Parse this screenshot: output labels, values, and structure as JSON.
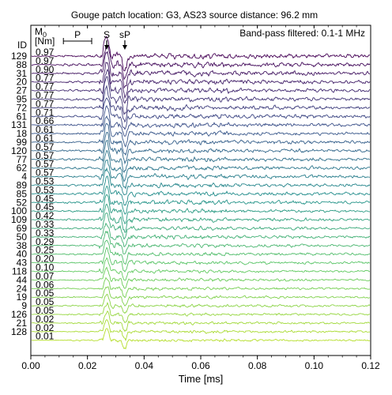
{
  "chart_data": {
    "type": "line",
    "title": "Gouge patch location: G3, AS23 source distance: 96.2 mm",
    "annotation": "Band-pass filtered: 0.1-1 MHz",
    "xlabel": "Time [ms]",
    "ylabel": "",
    "xlim": [
      0.0,
      0.12
    ],
    "xticks": [
      "0.00",
      "0.02",
      "0.04",
      "0.06",
      "0.08",
      "0.10",
      "0.12"
    ],
    "grid": false,
    "column_headers": {
      "id": "ID",
      "m0_symbol": "M",
      "m0_subscript": "0",
      "m0_unit": "[Nm]"
    },
    "phase_markers": [
      {
        "label": "P",
        "t_start": 0.0115,
        "t_end": 0.0215
      },
      {
        "label": "S",
        "t": 0.0268
      },
      {
        "label": "sP",
        "t": 0.0332
      }
    ],
    "colormap": [
      "#440154",
      "#3b528b",
      "#21918c",
      "#5ec962",
      "#b5de2b"
    ],
    "traces": [
      {
        "id": "129",
        "m0": "0.97"
      },
      {
        "id": "88",
        "m0": "0.97"
      },
      {
        "id": "31",
        "m0": "0.90"
      },
      {
        "id": "20",
        "m0": "0.77"
      },
      {
        "id": "27",
        "m0": "0.77"
      },
      {
        "id": "95",
        "m0": "0.77"
      },
      {
        "id": "72",
        "m0": "0.77"
      },
      {
        "id": "61",
        "m0": "0.71"
      },
      {
        "id": "131",
        "m0": "0.66"
      },
      {
        "id": "18",
        "m0": "0.61"
      },
      {
        "id": "99",
        "m0": "0.61"
      },
      {
        "id": "120",
        "m0": "0.57"
      },
      {
        "id": "77",
        "m0": "0.57"
      },
      {
        "id": "62",
        "m0": "0.57"
      },
      {
        "id": "4",
        "m0": "0.57"
      },
      {
        "id": "89",
        "m0": "0.53"
      },
      {
        "id": "85",
        "m0": "0.53"
      },
      {
        "id": "52",
        "m0": "0.45"
      },
      {
        "id": "100",
        "m0": "0.45"
      },
      {
        "id": "109",
        "m0": "0.42"
      },
      {
        "id": "69",
        "m0": "0.33"
      },
      {
        "id": "50",
        "m0": "0.33"
      },
      {
        "id": "38",
        "m0": "0.29"
      },
      {
        "id": "40",
        "m0": "0.25"
      },
      {
        "id": "43",
        "m0": "0.20"
      },
      {
        "id": "118",
        "m0": "0.10"
      },
      {
        "id": "44",
        "m0": "0.07"
      },
      {
        "id": "24",
        "m0": "0.06"
      },
      {
        "id": "19",
        "m0": "0.05"
      },
      {
        "id": "9",
        "m0": "0.05"
      },
      {
        "id": "126",
        "m0": "0.05"
      },
      {
        "id": "21",
        "m0": "0.02"
      },
      {
        "id": "128",
        "m0": "0.02"
      },
      {
        "id": "",
        "m0": "0.01"
      }
    ]
  }
}
